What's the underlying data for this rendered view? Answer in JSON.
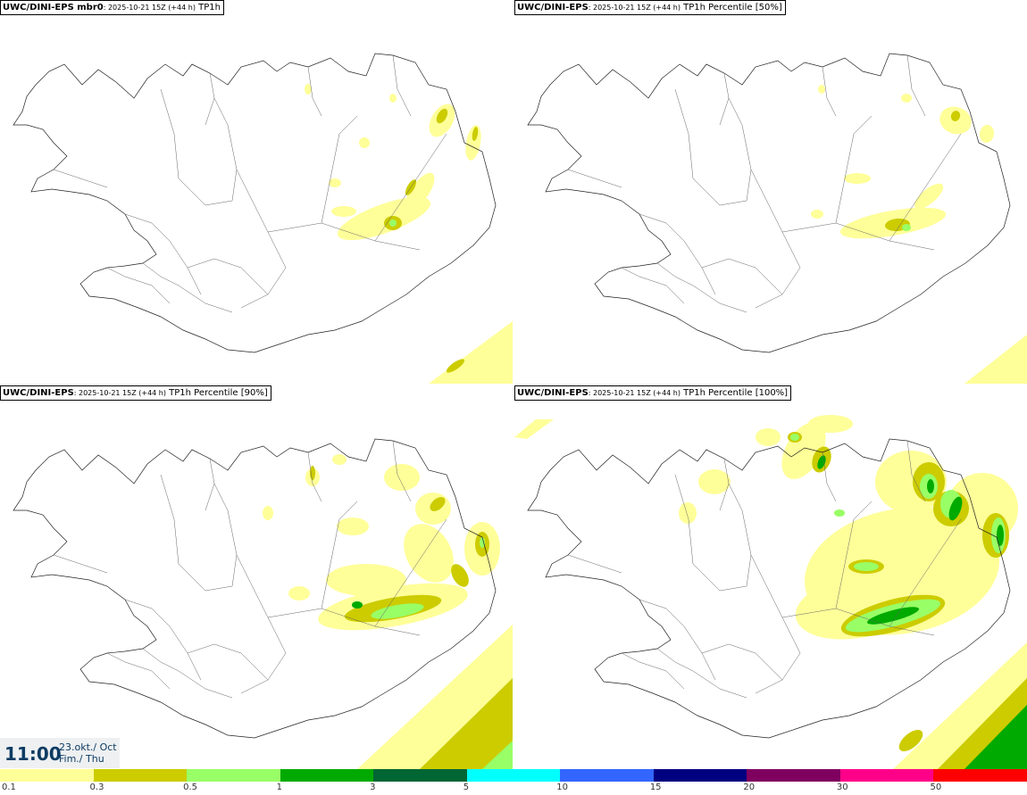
{
  "panels": [
    {
      "model": "UWC/DINI-EPS mbr0",
      "meta": ": 2025-10-21 15Z (+44 h)",
      "field": " TP1h",
      "level": 0
    },
    {
      "model": "UWC/DINI-EPS",
      "meta": ": 2025-10-21 15Z (+44 h)",
      "field": " TP1h Percentile [50%]",
      "level": 1
    },
    {
      "model": "UWC/DINI-EPS",
      "meta": ": 2025-10-21 15Z (+44 h)",
      "field": " TP1h Percentile [90%]",
      "level": 2
    },
    {
      "model": "UWC/DINI-EPS",
      "meta": ": 2025-10-21 15Z (+44 h)",
      "field": " TP1h Percentile [100%]",
      "level": 3
    }
  ],
  "valid_time": {
    "time": "11:00",
    "date_line1": "23.okt./ Oct",
    "date_line2": "Fim./ Thu"
  },
  "legend": {
    "colors": [
      "#ffff99",
      "#cccc00",
      "#99ff66",
      "#00aa00",
      "#006633",
      "#00ffff",
      "#3366ff",
      "#000080",
      "#800060",
      "#ff0088",
      "#ff0000"
    ],
    "ticks": [
      "0.1",
      "0.3",
      "0.5",
      "1",
      "3",
      "5",
      "10",
      "15",
      "20",
      "30",
      "50"
    ]
  }
}
